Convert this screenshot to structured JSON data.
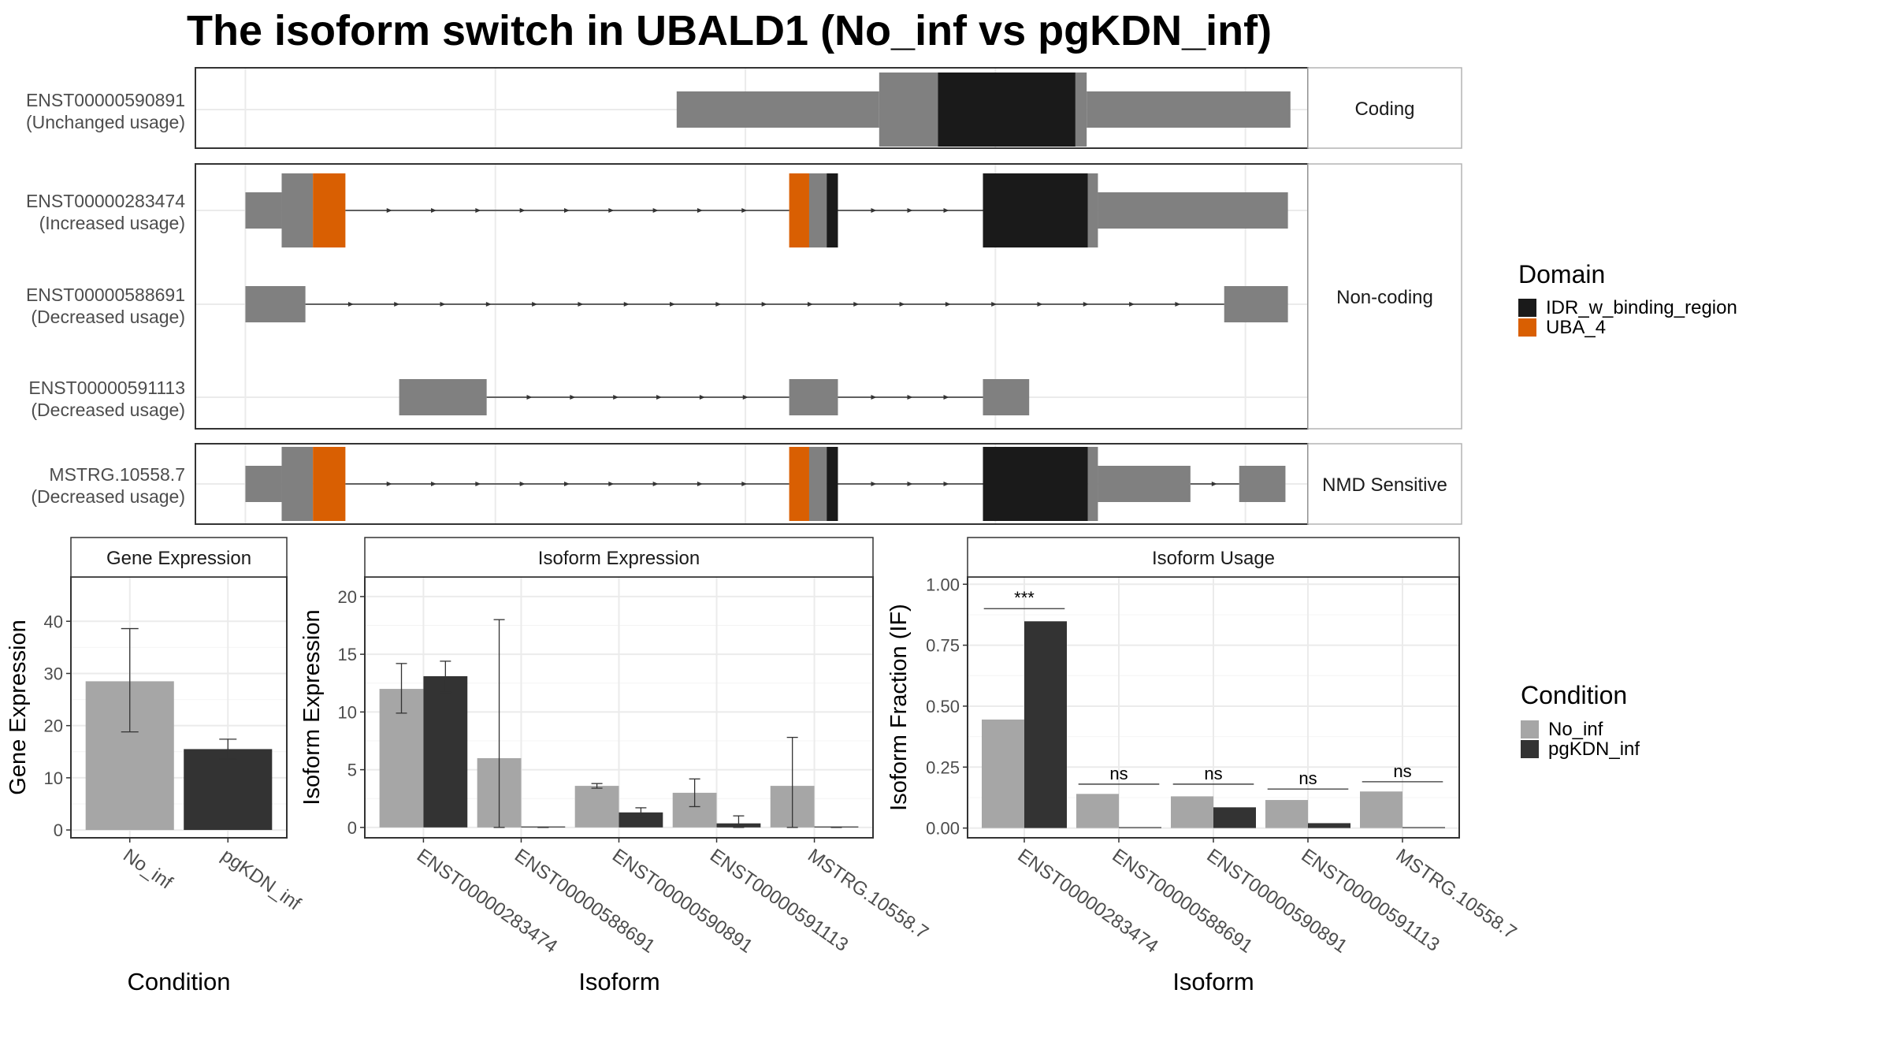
{
  "title": "The isoform switch in UBALD1 (No_inf vs pgKDN_inf)",
  "structure": {
    "panels": [
      {
        "strip": "Coding",
        "tracks": [
          {
            "id": "ENST00000590891",
            "note": "(Unchanged usage)",
            "exons": [
              [
                445,
                607
              ],
              [
                607,
                654
              ],
              [
                654,
                764
              ],
              [
                764,
                773
              ],
              [
                773,
                936
              ]
            ],
            "exon_fill": [
              "#808080",
              "#808080",
              "#1a1a1a",
              "#808080",
              "#808080"
            ],
            "exon_thick": [
              false,
              true,
              true,
              true,
              false
            ],
            "introns": []
          }
        ]
      },
      {
        "strip": "Non-coding",
        "tracks": [
          {
            "id": "ENST00000283474",
            "note": "(Increased usage)",
            "exons": [
              [
                100,
                129
              ],
              [
                129,
                154
              ],
              [
                154,
                180
              ],
              [
                535,
                551
              ],
              [
                551,
                565
              ],
              [
                565,
                574
              ],
              [
                690,
                774
              ],
              [
                774,
                782
              ],
              [
                782,
                934
              ]
            ],
            "exon_fill": [
              "#808080",
              "#808080",
              "#d95f02",
              "#d95f02",
              "#808080",
              "#1a1a1a",
              "#1a1a1a",
              "#808080",
              "#808080"
            ],
            "exon_thick": [
              false,
              true,
              true,
              true,
              true,
              true,
              true,
              true,
              false
            ],
            "introns": [
              [
                180,
                535
              ],
              [
                574,
                690
              ]
            ]
          },
          {
            "id": "ENST00000588691",
            "note": "(Decreased usage)",
            "exons": [
              [
                100,
                148
              ],
              [
                883,
                934
              ]
            ],
            "exon_fill": [
              "#808080",
              "#808080"
            ],
            "exon_thick": [
              false,
              false
            ],
            "introns": [
              [
                148,
                883
              ]
            ]
          },
          {
            "id": "ENST00000591113",
            "note": "(Decreased usage)",
            "exons": [
              [
                223,
                293
              ],
              [
                535,
                574
              ],
              [
                690,
                727
              ]
            ],
            "exon_fill": [
              "#808080",
              "#808080",
              "#808080"
            ],
            "exon_thick": [
              false,
              false,
              false
            ],
            "introns": [
              [
                293,
                535
              ],
              [
                574,
                690
              ]
            ]
          }
        ]
      },
      {
        "strip": "NMD Sensitive",
        "tracks": [
          {
            "id": "MSTRG.10558.7",
            "note": "(Decreased usage)",
            "exons": [
              [
                100,
                129
              ],
              [
                129,
                154
              ],
              [
                154,
                180
              ],
              [
                535,
                551
              ],
              [
                551,
                565
              ],
              [
                565,
                574
              ],
              [
                690,
                774
              ],
              [
                774,
                782
              ],
              [
                782,
                856
              ],
              [
                895,
                932
              ]
            ],
            "exon_fill": [
              "#808080",
              "#808080",
              "#d95f02",
              "#d95f02",
              "#808080",
              "#1a1a1a",
              "#1a1a1a",
              "#808080",
              "#808080",
              "#808080"
            ],
            "exon_thick": [
              false,
              true,
              true,
              true,
              true,
              true,
              true,
              true,
              false,
              false
            ],
            "introns": [
              [
                180,
                535
              ],
              [
                574,
                690
              ],
              [
                856,
                895
              ]
            ]
          }
        ]
      }
    ]
  },
  "domain_legend": {
    "title": "Domain",
    "items": [
      {
        "label": "IDR_w_binding_region",
        "color": "#1a1a1a"
      },
      {
        "label": "UBA_4",
        "color": "#d95f02"
      }
    ]
  },
  "condition_legend": {
    "title": "Condition",
    "items": [
      {
        "label": "No_inf",
        "color": "#a6a6a6"
      },
      {
        "label": "pgKDN_inf",
        "color": "#333333"
      }
    ]
  },
  "chart_data": [
    {
      "type": "bar",
      "title": "Gene Expression",
      "xlabel": "Condition",
      "ylabel": "Gene Expression",
      "categories": [
        "No_inf",
        "pgKDN_inf"
      ],
      "values": [
        28.5,
        15.5
      ],
      "errors_low": [
        18.8,
        13.6
      ],
      "errors_high": [
        38.6,
        17.4
      ],
      "ylim": [
        -1.5,
        48.5
      ],
      "yticks": [
        0,
        10,
        20,
        30,
        40
      ],
      "ytick_labels": [
        "0",
        "10",
        "20",
        "30",
        "40"
      ]
    },
    {
      "type": "bar",
      "title": "Isoform Expression",
      "xlabel": "Isoform",
      "ylabel": "Isoform Expression",
      "categories": [
        "ENST00000283474",
        "ENST00000588691",
        "ENST00000590891",
        "ENST00000591113",
        "MSTRG.10558.7"
      ],
      "series": [
        {
          "name": "No_inf",
          "values": [
            12.0,
            6.0,
            3.6,
            3.0,
            3.6
          ],
          "err_low": [
            9.9,
            0.0,
            3.4,
            1.8,
            0.0
          ],
          "err_high": [
            14.2,
            18.0,
            3.8,
            4.2,
            7.8
          ]
        },
        {
          "name": "pgKDN_inf",
          "values": [
            13.1,
            0.0,
            1.3,
            0.35,
            0.0
          ],
          "err_low": [
            11.7,
            0.0,
            0.9,
            0.0,
            0.0
          ],
          "err_high": [
            14.4,
            0.0,
            1.7,
            1.0,
            0.0
          ]
        }
      ],
      "ylim": [
        -0.9,
        21.7
      ],
      "yticks": [
        0,
        5,
        10,
        15,
        20
      ],
      "ytick_labels": [
        "0",
        "5",
        "10",
        "15",
        "20"
      ]
    },
    {
      "type": "bar",
      "title": "Isoform Usage",
      "xlabel": "Isoform",
      "ylabel": "Isoform Fraction (IF)",
      "categories": [
        "ENST00000283474",
        "ENST00000588691",
        "ENST00000590891",
        "ENST00000591113",
        "MSTRG.10558.7"
      ],
      "series": [
        {
          "name": "No_inf",
          "values": [
            0.445,
            0.14,
            0.13,
            0.115,
            0.15
          ]
        },
        {
          "name": "pgKDN_inf",
          "values": [
            0.848,
            0.0,
            0.085,
            0.02,
            0.0
          ]
        }
      ],
      "significance": [
        "***",
        "ns",
        "ns",
        "ns",
        "ns"
      ],
      "sig_y": [
        0.9,
        0.18,
        0.18,
        0.16,
        0.19
      ],
      "ylim": [
        -0.04,
        1.03
      ],
      "yticks": [
        0,
        0.25,
        0.5,
        0.75,
        1.0
      ],
      "ytick_labels": [
        "0.00",
        "0.25",
        "0.50",
        "0.75",
        "1.00"
      ]
    }
  ]
}
